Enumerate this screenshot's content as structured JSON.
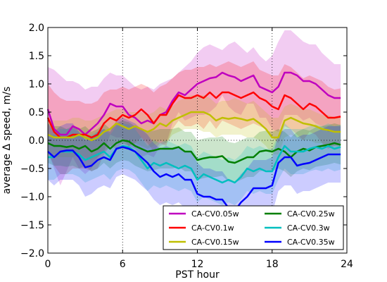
{
  "chart_data": {
    "type": "line",
    "xlabel": "PST hour",
    "ylabel": "average Δ speed, m/s",
    "xlim": [
      0,
      24
    ],
    "ylim": [
      -2.0,
      2.0
    ],
    "xticks": [
      "0",
      "6",
      "12",
      "18",
      "24"
    ],
    "yticks": [
      "−2.0",
      "−1.5",
      "−1.0",
      "−0.5",
      "0.0",
      "0.5",
      "1.0",
      "1.5",
      "2.0"
    ],
    "grid": "dotted vertical lines at 6, 12, 18 and dotted horizontal line at 0",
    "legend": {
      "placement": "lower-right",
      "columns": 2
    },
    "x": [
      0,
      0.5,
      1,
      1.5,
      2,
      2.5,
      3,
      3.5,
      4,
      4.5,
      5,
      5.5,
      6,
      6.5,
      7,
      7.5,
      8,
      8.5,
      9,
      9.5,
      10,
      10.5,
      11,
      11.5,
      12,
      12.5,
      13,
      13.5,
      14,
      14.5,
      15,
      15.5,
      16,
      16.5,
      17,
      17.5,
      18,
      18.5,
      19,
      19.5,
      20,
      20.5,
      21,
      21.5,
      22,
      22.5,
      23,
      23.5
    ],
    "series": [
      {
        "name": "CA-CV0.05w",
        "color": "#bf00bf",
        "values": [
          0.55,
          0.2,
          0.1,
          0.1,
          0.25,
          0.2,
          0.1,
          0.2,
          0.3,
          0.45,
          0.65,
          0.6,
          0.6,
          0.45,
          0.4,
          0.3,
          0.35,
          0.3,
          0.45,
          0.5,
          0.7,
          0.85,
          0.8,
          0.9,
          1.0,
          1.05,
          1.1,
          1.12,
          1.2,
          1.15,
          1.12,
          1.05,
          1.1,
          1.15,
          0.95,
          0.9,
          0.85,
          0.95,
          1.2,
          1.2,
          1.15,
          1.05,
          1.05,
          1.0,
          0.9,
          0.8,
          0.75,
          0.75
        ],
        "upper": [
          1.3,
          1.25,
          1.15,
          1.05,
          1.05,
          1.0,
          0.9,
          0.95,
          0.95,
          1.1,
          1.2,
          1.15,
          1.15,
          1.05,
          0.95,
          0.9,
          0.95,
          0.9,
          1.0,
          1.05,
          1.1,
          1.2,
          1.3,
          1.4,
          1.55,
          1.65,
          1.7,
          1.65,
          1.6,
          1.7,
          1.75,
          1.65,
          1.55,
          1.65,
          1.5,
          1.4,
          1.5,
          1.75,
          1.95,
          1.95,
          1.85,
          1.75,
          1.7,
          1.7,
          1.55,
          1.45,
          1.35,
          1.35
        ],
        "lower": [
          -0.2,
          -0.5,
          -0.8,
          -0.55,
          -0.3,
          -0.5,
          -0.6,
          -0.5,
          -0.3,
          -0.2,
          0.1,
          0.05,
          0.05,
          -0.1,
          -0.15,
          -0.3,
          -0.25,
          -0.3,
          -0.1,
          -0.05,
          0.3,
          0.5,
          0.35,
          0.4,
          0.45,
          0.45,
          0.5,
          0.6,
          0.8,
          0.6,
          0.5,
          0.45,
          0.65,
          0.65,
          0.4,
          0.4,
          0.2,
          0.15,
          0.45,
          0.45,
          0.45,
          0.35,
          0.4,
          0.3,
          0.25,
          0.15,
          0.15,
          0.15
        ]
      },
      {
        "name": "CA-CV0.1w",
        "color": "#ff0000",
        "values": [
          0.4,
          0.15,
          0.05,
          0.05,
          0.1,
          0.1,
          0.1,
          0.05,
          0.1,
          0.3,
          0.4,
          0.35,
          0.45,
          0.4,
          0.45,
          0.55,
          0.45,
          0.3,
          0.45,
          0.45,
          0.65,
          0.8,
          0.75,
          0.75,
          0.8,
          0.75,
          0.85,
          0.75,
          0.85,
          0.85,
          0.8,
          0.75,
          0.8,
          0.85,
          0.75,
          0.7,
          0.6,
          0.55,
          0.8,
          0.75,
          0.65,
          0.55,
          0.65,
          0.6,
          0.5,
          0.4,
          0.4,
          0.42
        ],
        "upper": [
          1.0,
          0.85,
          0.75,
          0.7,
          0.7,
          0.7,
          0.65,
          0.65,
          0.7,
          0.85,
          0.9,
          0.9,
          0.95,
          0.9,
          0.95,
          1.0,
          0.95,
          0.85,
          0.95,
          1.0,
          1.1,
          1.2,
          1.25,
          1.25,
          1.3,
          1.3,
          1.35,
          1.3,
          1.35,
          1.4,
          1.35,
          1.3,
          1.35,
          1.4,
          1.25,
          1.2,
          1.15,
          1.15,
          1.35,
          1.3,
          1.2,
          1.1,
          1.15,
          1.1,
          1.05,
          0.95,
          0.9,
          0.92
        ],
        "lower": [
          -0.2,
          -0.45,
          -0.6,
          -0.6,
          -0.5,
          -0.5,
          -0.5,
          -0.55,
          -0.5,
          -0.25,
          -0.1,
          -0.15,
          -0.05,
          -0.1,
          -0.05,
          0.05,
          -0.05,
          -0.2,
          -0.05,
          -0.1,
          0.2,
          0.35,
          0.25,
          0.25,
          0.3,
          0.2,
          0.35,
          0.2,
          0.35,
          0.3,
          0.25,
          0.2,
          0.25,
          0.3,
          0.25,
          0.2,
          0.05,
          -0.05,
          0.25,
          0.2,
          0.1,
          0.0,
          0.15,
          0.1,
          -0.05,
          -0.15,
          -0.1,
          -0.08
        ]
      },
      {
        "name": "CA-CV0.15w",
        "color": "#bfbf00",
        "values": [
          0.1,
          0.05,
          0.05,
          0.05,
          0.05,
          0.1,
          0.05,
          0.0,
          0.05,
          0.15,
          0.2,
          0.3,
          0.25,
          0.2,
          0.25,
          0.2,
          0.15,
          0.2,
          0.3,
          0.25,
          0.35,
          0.4,
          0.45,
          0.5,
          0.5,
          0.5,
          0.45,
          0.35,
          0.4,
          0.38,
          0.4,
          0.38,
          0.35,
          0.38,
          0.3,
          0.2,
          0.05,
          0.05,
          0.35,
          0.4,
          0.35,
          0.3,
          0.28,
          0.25,
          0.2,
          0.18,
          0.15,
          0.15
        ],
        "upper": [
          0.4,
          0.35,
          0.35,
          0.35,
          0.4,
          0.4,
          0.35,
          0.35,
          0.4,
          0.45,
          0.5,
          0.55,
          0.55,
          0.5,
          0.5,
          0.5,
          0.45,
          0.5,
          0.6,
          0.55,
          0.6,
          0.7,
          0.75,
          0.8,
          0.8,
          0.8,
          0.75,
          0.65,
          0.7,
          0.7,
          0.75,
          0.7,
          0.65,
          0.7,
          0.6,
          0.5,
          0.4,
          0.4,
          0.6,
          0.65,
          0.6,
          0.55,
          0.55,
          0.5,
          0.45,
          0.45,
          0.4,
          0.4
        ],
        "lower": [
          -0.25,
          -0.3,
          -0.3,
          -0.3,
          -0.3,
          -0.25,
          -0.3,
          -0.35,
          -0.3,
          -0.2,
          -0.1,
          -0.05,
          -0.05,
          -0.1,
          -0.05,
          -0.1,
          -0.15,
          -0.1,
          0.0,
          -0.05,
          0.1,
          0.15,
          0.2,
          0.2,
          0.2,
          0.15,
          0.15,
          0.05,
          0.1,
          0.1,
          0.1,
          0.1,
          0.05,
          0.05,
          0.0,
          -0.1,
          -0.25,
          -0.25,
          0.05,
          0.1,
          0.05,
          0.0,
          0.0,
          -0.05,
          -0.05,
          -0.1,
          -0.1,
          -0.12
        ]
      },
      {
        "name": "CA-CV0.25w",
        "color": "#007f00",
        "values": [
          -0.05,
          -0.1,
          -0.1,
          -0.12,
          -0.1,
          -0.15,
          -0.1,
          -0.2,
          -0.15,
          -0.05,
          -0.15,
          -0.05,
          0.0,
          -0.02,
          -0.1,
          -0.15,
          -0.2,
          -0.18,
          -0.15,
          -0.15,
          -0.15,
          -0.12,
          -0.2,
          -0.2,
          -0.35,
          -0.32,
          -0.3,
          -0.3,
          -0.28,
          -0.38,
          -0.4,
          -0.35,
          -0.3,
          -0.3,
          -0.2,
          -0.18,
          -0.2,
          -0.15,
          -0.2,
          -0.3,
          -0.2,
          -0.15,
          -0.18,
          -0.12,
          -0.1,
          -0.08,
          -0.05,
          -0.08
        ],
        "upper": [
          0.3,
          0.25,
          0.25,
          0.2,
          0.25,
          0.2,
          0.25,
          0.15,
          0.2,
          0.3,
          0.2,
          0.3,
          0.35,
          0.32,
          0.25,
          0.2,
          0.15,
          0.17,
          0.2,
          0.2,
          0.2,
          0.23,
          0.15,
          0.15,
          0.0,
          0.03,
          0.05,
          0.05,
          0.07,
          -0.03,
          -0.05,
          0.0,
          0.05,
          0.05,
          0.15,
          0.17,
          0.15,
          0.2,
          0.15,
          0.05,
          0.15,
          0.2,
          0.17,
          0.23,
          0.25,
          0.27,
          0.3,
          0.27
        ],
        "lower": [
          -0.4,
          -0.45,
          -0.45,
          -0.47,
          -0.45,
          -0.5,
          -0.45,
          -0.55,
          -0.5,
          -0.4,
          -0.5,
          -0.4,
          -0.35,
          -0.37,
          -0.45,
          -0.5,
          -0.55,
          -0.53,
          -0.5,
          -0.5,
          -0.5,
          -0.47,
          -0.55,
          -0.55,
          -0.7,
          -0.67,
          -0.65,
          -0.65,
          -0.63,
          -0.73,
          -0.75,
          -0.7,
          -0.65,
          -0.65,
          -0.55,
          -0.53,
          -0.55,
          -0.5,
          -0.55,
          -0.65,
          -0.55,
          -0.5,
          -0.53,
          -0.47,
          -0.45,
          -0.43,
          -0.4,
          -0.43
        ]
      },
      {
        "name": "CA-CV0.3w",
        "color": "#00bfbf",
        "values": [
          -0.3,
          -0.3,
          -0.2,
          -0.2,
          -0.2,
          -0.25,
          -0.35,
          -0.3,
          -0.25,
          -0.2,
          -0.3,
          -0.15,
          -0.1,
          -0.12,
          -0.2,
          -0.35,
          -0.5,
          -0.4,
          -0.45,
          -0.4,
          -0.45,
          -0.5,
          -0.45,
          -0.5,
          -0.7,
          -0.6,
          -0.65,
          -0.7,
          -0.75,
          -0.7,
          -0.75,
          -0.65,
          -0.5,
          -0.55,
          -0.5,
          -0.55,
          -0.55,
          -0.3,
          -0.1,
          -0.2,
          -0.2,
          -0.2,
          -0.15,
          -0.12,
          -0.15,
          -0.1,
          -0.15,
          -0.12
        ],
        "upper": [
          0.1,
          0.1,
          0.2,
          0.2,
          0.2,
          0.15,
          0.05,
          0.1,
          0.15,
          0.2,
          0.1,
          0.25,
          0.3,
          0.28,
          0.2,
          0.05,
          -0.1,
          0.0,
          -0.05,
          0.0,
          -0.05,
          -0.1,
          -0.05,
          -0.1,
          -0.3,
          -0.2,
          -0.25,
          -0.3,
          -0.35,
          -0.3,
          -0.35,
          -0.25,
          -0.1,
          -0.15,
          -0.1,
          -0.15,
          -0.15,
          0.1,
          0.3,
          0.2,
          0.2,
          0.2,
          0.25,
          0.28,
          0.25,
          0.3,
          0.25,
          0.28
        ],
        "lower": [
          -0.7,
          -0.7,
          -0.6,
          -0.6,
          -0.6,
          -0.65,
          -0.75,
          -0.7,
          -0.65,
          -0.6,
          -0.7,
          -0.55,
          -0.5,
          -0.52,
          -0.6,
          -0.75,
          -0.9,
          -0.8,
          -0.85,
          -0.8,
          -0.85,
          -0.9,
          -0.85,
          -0.9,
          -1.1,
          -1.0,
          -1.05,
          -1.1,
          -1.15,
          -1.1,
          -1.15,
          -1.05,
          -0.9,
          -0.95,
          -0.9,
          -0.95,
          -0.95,
          -0.7,
          -0.5,
          -0.6,
          -0.6,
          -0.6,
          -0.55,
          -0.52,
          -0.55,
          -0.5,
          -0.55,
          -0.52
        ]
      },
      {
        "name": "CA-CV0.35w",
        "color": "#0000ff",
        "values": [
          -0.2,
          -0.3,
          -0.2,
          -0.18,
          -0.18,
          -0.3,
          -0.48,
          -0.45,
          -0.35,
          -0.3,
          -0.35,
          -0.15,
          -0.12,
          -0.15,
          -0.2,
          -0.3,
          -0.4,
          -0.55,
          -0.65,
          -0.6,
          -0.65,
          -0.6,
          -0.7,
          -0.7,
          -0.95,
          -1.0,
          -1.0,
          -1.05,
          -1.05,
          -1.2,
          -1.25,
          -1.1,
          -1.0,
          -0.85,
          -0.85,
          -0.85,
          -0.8,
          -0.4,
          -0.3,
          -0.3,
          -0.45,
          -0.42,
          -0.4,
          -0.35,
          -0.3,
          -0.25,
          -0.25,
          -0.25
        ],
        "upper": [
          0.3,
          0.15,
          0.25,
          0.3,
          0.3,
          0.15,
          0.0,
          0.05,
          0.15,
          0.2,
          0.15,
          0.35,
          0.4,
          0.35,
          0.3,
          0.2,
          0.1,
          -0.05,
          -0.15,
          -0.1,
          -0.15,
          -0.1,
          -0.2,
          -0.2,
          -0.4,
          -0.5,
          -0.5,
          -0.55,
          -0.55,
          -0.7,
          -0.75,
          -0.6,
          -0.5,
          -0.35,
          -0.35,
          -0.35,
          -0.3,
          0.1,
          0.2,
          0.2,
          0.05,
          0.1,
          0.1,
          0.15,
          0.2,
          0.25,
          0.25,
          0.25
        ],
        "lower": [
          -0.7,
          -0.8,
          -0.7,
          -0.7,
          -0.7,
          -0.8,
          -1.0,
          -0.95,
          -0.85,
          -0.8,
          -0.85,
          -0.65,
          -0.6,
          -0.65,
          -0.7,
          -0.8,
          -0.9,
          -1.05,
          -1.15,
          -1.1,
          -1.15,
          -1.1,
          -1.2,
          -1.2,
          -1.5,
          -1.5,
          -1.5,
          -1.55,
          -1.55,
          -1.7,
          -1.75,
          -1.6,
          -1.5,
          -1.35,
          -1.35,
          -1.35,
          -1.3,
          -0.9,
          -0.8,
          -0.8,
          -0.95,
          -0.9,
          -0.9,
          -0.85,
          -0.8,
          -0.75,
          -0.75,
          -0.75
        ]
      }
    ]
  }
}
